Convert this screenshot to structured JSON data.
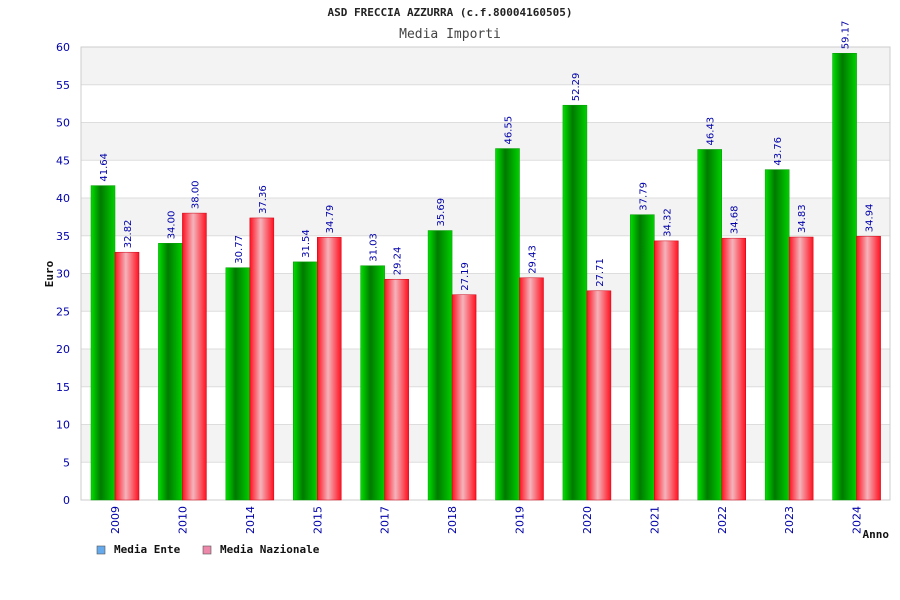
{
  "chart_data": {
    "type": "bar",
    "title": "ASD FRECCIA AZZURRA (c.f.80004160505)",
    "subtitle": "Media Importi",
    "ylabel": "Euro",
    "xlabel": "Anno",
    "ylim": [
      0,
      60
    ],
    "yticks": [
      "0",
      "5",
      "10",
      "15",
      "20",
      "25",
      "30",
      "35",
      "40",
      "45",
      "50",
      "55",
      "60"
    ],
    "grid": true,
    "legend_position": "bottom-left",
    "categories": [
      "2009",
      "2010",
      "2014",
      "2015",
      "2017",
      "2018",
      "2019",
      "2020",
      "2021",
      "2022",
      "2023",
      "2024"
    ],
    "series": [
      {
        "name": "Media Ente",
        "color": "#00bb00",
        "legend_color": "#66aaee",
        "values": [
          41.64,
          34.0,
          30.77,
          31.54,
          31.03,
          35.69,
          46.55,
          52.29,
          37.79,
          46.43,
          43.76,
          59.17
        ],
        "labels": [
          "41.64",
          "34.00",
          "30.77",
          "31.54",
          "31.03",
          "35.69",
          "46.55",
          "52.29",
          "37.79",
          "46.43",
          "43.76",
          "59.17"
        ]
      },
      {
        "name": "Media Nazionale",
        "color": "#ee1122",
        "legend_color": "#ee88aa",
        "values": [
          32.82,
          38.0,
          37.36,
          34.79,
          29.24,
          27.19,
          29.43,
          27.71,
          34.32,
          34.68,
          34.83,
          34.94
        ],
        "labels": [
          "32.82",
          "38.00",
          "37.36",
          "34.79",
          "29.24",
          "27.19",
          "29.43",
          "27.71",
          "34.32",
          "34.68",
          "34.83",
          "34.94"
        ]
      }
    ]
  }
}
